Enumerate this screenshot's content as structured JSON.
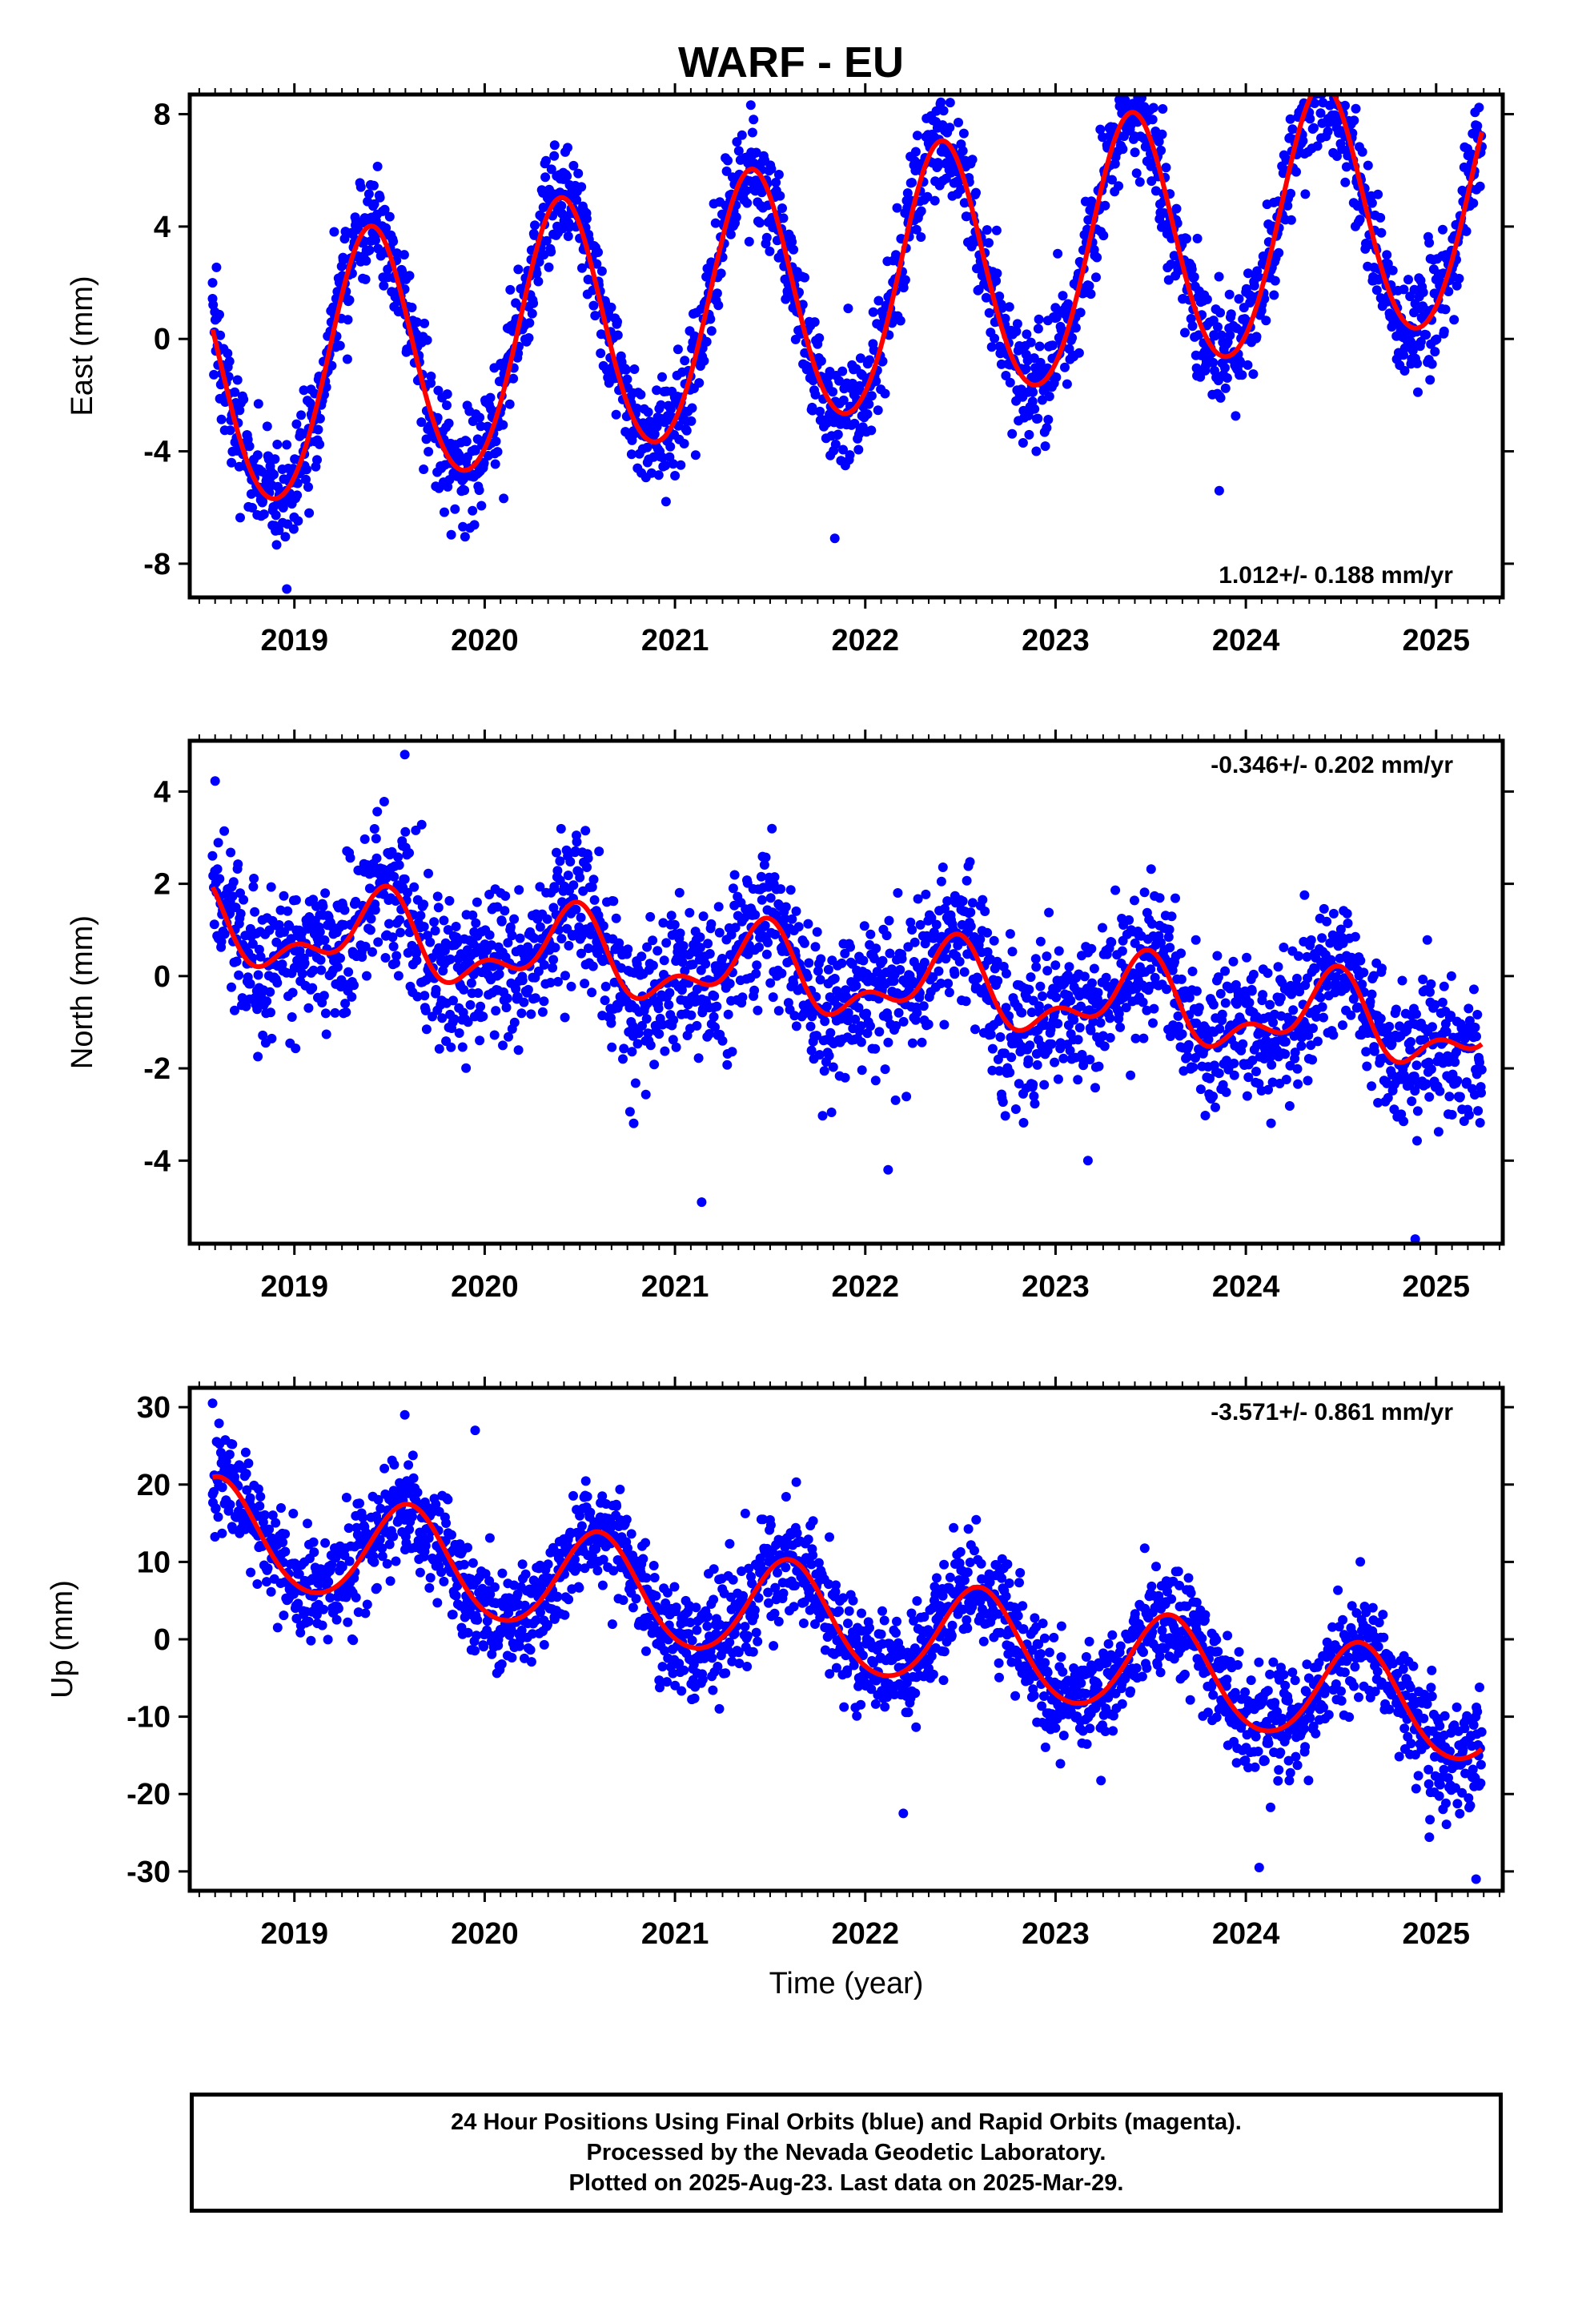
{
  "title": "WARF - EU",
  "chart_data": [
    {
      "type": "scatter",
      "panel": "east",
      "title": "WARF - EU",
      "xlabel": "",
      "ylabel": "East (mm)",
      "xlim": [
        2018.45,
        2025.35
      ],
      "ylim": [
        -9.2,
        8.7
      ],
      "xticks": [
        "2019",
        "2020",
        "2021",
        "2022",
        "2023",
        "2024",
        "2025"
      ],
      "yticks": [
        "8",
        "4",
        "0",
        "-4",
        "-8"
      ],
      "rate": "1.012+/- 0.188 mm/yr",
      "point_color": "#0000ff",
      "fit_color": "#ff0000",
      "data_span": [
        2018.57,
        2025.24
      ],
      "fit": {
        "intercept": 1.75,
        "reference_epoch": 2022.0,
        "trend_mm_per_yr": 1.012,
        "annual_amplitude": 4.6,
        "annual_peak": 2019.4,
        "semiannual_amplitude": 0.3,
        "semiannual_peak": 2019.4
      },
      "scatter_sd": 1.0,
      "outliers": [
        [
          2018.57,
          2.0
        ],
        [
          2018.96,
          -8.9
        ],
        [
          2023.38,
          8.3
        ],
        [
          2023.86,
          -5.4
        ],
        [
          2021.84,
          -7.1
        ]
      ]
    },
    {
      "type": "scatter",
      "panel": "north",
      "xlabel": "",
      "ylabel": "North (mm)",
      "xlim": [
        2018.45,
        2025.35
      ],
      "ylim": [
        -5.8,
        5.1
      ],
      "xticks": [
        "2019",
        "2020",
        "2021",
        "2022",
        "2023",
        "2024",
        "2025"
      ],
      "yticks": [
        "4",
        "2",
        "0",
        "-2",
        "-4"
      ],
      "rate": "-0.346+/- 0.202 mm/yr",
      "point_color": "#0000ff",
      "fit_color": "#ff0000",
      "data_span": [
        2018.57,
        2025.24
      ],
      "fit": {
        "intercept": 1.1,
        "reference_epoch": 2018.55,
        "trend_mm_per_yr": -0.346,
        "annual_amplitude": 0.75,
        "annual_peak": 2019.45,
        "semiannual_amplitude": 0.45,
        "semiannual_peak": 2019.5
      },
      "scatter_sd": 0.8,
      "outliers": [
        [
          2019.58,
          4.8
        ],
        [
          2021.14,
          -4.9
        ],
        [
          2022.12,
          -4.2
        ],
        [
          2024.89,
          -5.7
        ],
        [
          2023.17,
          -4.0
        ]
      ]
    },
    {
      "type": "scatter",
      "panel": "up",
      "xlabel": "Time (year)",
      "ylabel": "Up (mm)",
      "xlim": [
        2018.45,
        2025.35
      ],
      "ylim": [
        -32.5,
        32.5
      ],
      "xticks": [
        "2019",
        "2020",
        "2021",
        "2022",
        "2023",
        "2024",
        "2025"
      ],
      "yticks": [
        "30",
        "20",
        "10",
        "0",
        "-10",
        "-20",
        "-30"
      ],
      "rate": "-3.571+/- 0.861 mm/yr",
      "point_color": "#0000ff",
      "fit_color": "#ff0000",
      "data_span": [
        2018.57,
        2025.24
      ],
      "fit": {
        "intercept": 14.0,
        "reference_epoch": 2018.55,
        "trend_mm_per_yr": -3.571,
        "annual_amplitude": 6.6,
        "annual_peak": 2019.6,
        "semiannual_amplitude": 0.6,
        "semiannual_peak": 2019.6
      },
      "scatter_sd": 3.5,
      "outliers": [
        [
          2018.57,
          30.5
        ],
        [
          2019.58,
          29.0
        ],
        [
          2019.95,
          27.0
        ],
        [
          2022.2,
          -22.5
        ],
        [
          2024.07,
          -29.5
        ],
        [
          2025.21,
          -31.0
        ]
      ]
    }
  ],
  "footer": {
    "line1": "24 Hour Positions Using Final Orbits (blue) and Rapid Orbits (magenta).",
    "line2": "Processed by the Nevada Geodetic Laboratory.",
    "line3": "Plotted on 2025-Aug-23. Last data on 2025-Mar-29."
  }
}
